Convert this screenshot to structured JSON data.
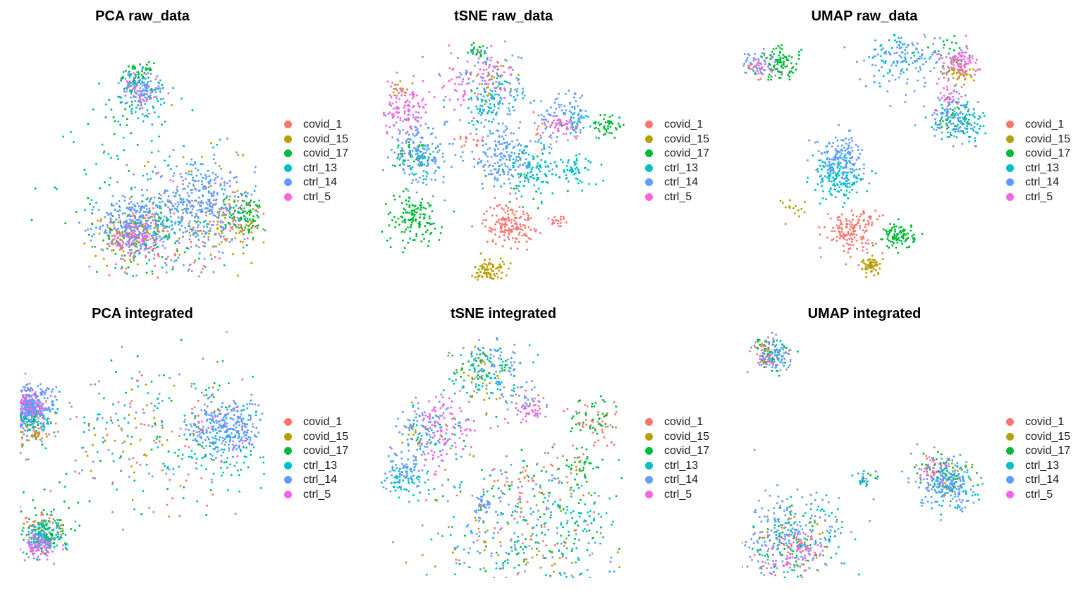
{
  "legend": {
    "entries": [
      {
        "name": "covid_1",
        "color": "#F8766D"
      },
      {
        "name": "covid_15",
        "color": "#B79F00"
      },
      {
        "name": "covid_17",
        "color": "#00BA38"
      },
      {
        "name": "ctrl_13",
        "color": "#00BFC4"
      },
      {
        "name": "ctrl_14",
        "color": "#619CFF"
      },
      {
        "name": "ctrl_5",
        "color": "#F564E3"
      }
    ]
  },
  "chart_data": [
    {
      "type": "scatter",
      "title": "PCA raw_data",
      "xlabel": "",
      "ylabel": "",
      "axes": "none",
      "grid": false,
      "legend_position": "right",
      "xlim": [
        0,
        100
      ],
      "ylim": [
        0,
        100
      ],
      "series": [
        {
          "name": "covid_1",
          "values": [
            [
              66,
              15,
              16,
              70
            ],
            [
              88,
              26,
              6,
              40
            ],
            [
              50,
              22,
              8,
              40
            ],
            [
              44,
              20,
              5,
              50
            ]
          ]
        },
        {
          "name": "covid_15",
          "values": [
            [
              82,
              22,
              7,
              70
            ],
            [
              50,
              18,
              5,
              40
            ],
            [
              42,
              16,
              6,
              40
            ],
            [
              64,
              28,
              20,
              45
            ]
          ]
        },
        {
          "name": "covid_17",
          "values": [
            [
              48,
              83,
              3,
              60
            ],
            [
              92,
              26,
              5,
              80
            ],
            [
              50,
              18,
              9,
              60
            ],
            [
              46,
              70,
              8,
              30
            ],
            [
              30,
              32,
              10,
              20
            ]
          ]
        },
        {
          "name": "ctrl_13",
          "values": [
            [
              48,
              20,
              9,
              70
            ],
            [
              68,
              28,
              14,
              80
            ],
            [
              50,
              74,
              7,
              60
            ],
            [
              40,
              48,
              12,
              25
            ]
          ]
        },
        {
          "name": "ctrl_14",
          "values": [
            [
              46,
              22,
              7,
              200
            ],
            [
              70,
              29,
              13,
              250
            ],
            [
              49,
              78,
              4,
              110
            ],
            [
              74,
              33,
              8,
              120
            ]
          ]
        },
        {
          "name": "ctrl_5",
          "values": [
            [
              47,
              16,
              5,
              70
            ],
            [
              50,
              76,
              4,
              30
            ],
            [
              66,
              30,
              10,
              20
            ]
          ]
        }
      ]
    },
    {
      "type": "scatter",
      "title": "tSNE raw_data",
      "xlabel": "",
      "ylabel": "",
      "axes": "none",
      "grid": false,
      "legend_position": "right",
      "xlim": [
        0,
        100
      ],
      "ylim": [
        0,
        100
      ],
      "series": [
        {
          "name": "covid_1",
          "values": [
            [
              52,
              23,
              5,
              160
            ],
            [
              72,
              24,
              2,
              20
            ],
            [
              36,
              56,
              3,
              20
            ],
            [
              70,
              62,
              4,
              20
            ]
          ]
        },
        {
          "name": "covid_15",
          "values": [
            [
              44,
              4,
              3,
              90
            ],
            [
              46,
              82,
              5,
              30
            ],
            [
              8,
              78,
              2,
              15
            ]
          ]
        },
        {
          "name": "covid_17",
          "values": [
            [
              13,
              25,
              6,
              130
            ],
            [
              40,
              93,
              2,
              25
            ],
            [
              92,
              63,
              3,
              45
            ],
            [
              55,
              42,
              8,
              25
            ],
            [
              14,
              52,
              4,
              40
            ]
          ]
        },
        {
          "name": "ctrl_13",
          "values": [
            [
              62,
              45,
              7,
              110
            ],
            [
              80,
              45,
              4,
              50
            ],
            [
              44,
              72,
              6,
              90
            ],
            [
              15,
              48,
              4,
              40
            ],
            [
              80,
              65,
              3,
              30
            ]
          ]
        },
        {
          "name": "ctrl_14",
          "values": [
            [
              50,
              50,
              8,
              170
            ],
            [
              16,
              50,
              6,
              120
            ],
            [
              44,
              78,
              9,
              90
            ],
            [
              74,
              68,
              5,
              70
            ],
            [
              12,
              63,
              4,
              30
            ]
          ]
        },
        {
          "name": "ctrl_5",
          "values": [
            [
              8,
              70,
              6,
              110
            ],
            [
              33,
              80,
              6,
              50
            ],
            [
              74,
              62,
              3,
              40
            ],
            [
              46,
              86,
              4,
              30
            ]
          ]
        }
      ]
    },
    {
      "type": "scatter",
      "title": "UMAP raw_data",
      "xlabel": "",
      "ylabel": "",
      "axes": "none",
      "grid": false,
      "legend_position": "right",
      "xlim": [
        0,
        100
      ],
      "ylim": [
        0,
        100
      ],
      "series": [
        {
          "name": "covid_1",
          "values": [
            [
              44,
              20,
              5,
              140
            ],
            [
              6,
              86,
              3,
              20
            ],
            [
              52,
              26,
              2,
              10
            ]
          ]
        },
        {
          "name": "covid_15",
          "values": [
            [
              53,
              6,
              2,
              60
            ],
            [
              88,
              84,
              3,
              50
            ],
            [
              22,
              30,
              3,
              15
            ]
          ]
        },
        {
          "name": "covid_17",
          "values": [
            [
              64,
              18,
              3,
              100
            ],
            [
              16,
              88,
              4,
              90
            ],
            [
              84,
              93,
              4,
              20
            ],
            [
              86,
              65,
              4,
              40
            ]
          ]
        },
        {
          "name": "ctrl_13",
          "values": [
            [
              38,
              42,
              5,
              120
            ],
            [
              90,
              65,
              5,
              80
            ],
            [
              64,
              90,
              6,
              50
            ],
            [
              42,
              38,
              3,
              30
            ]
          ]
        },
        {
          "name": "ctrl_14",
          "values": [
            [
              40,
              50,
              5,
              140
            ],
            [
              68,
              92,
              9,
              120
            ],
            [
              85,
              66,
              5,
              90
            ],
            [
              6,
              88,
              3,
              40
            ]
          ]
        },
        {
          "name": "ctrl_5",
          "values": [
            [
              88,
              88,
              4,
              90
            ],
            [
              84,
              75,
              3,
              30
            ],
            [
              10,
              86,
              3,
              15
            ]
          ]
        }
      ]
    },
    {
      "type": "scatter",
      "title": "PCA integrated",
      "xlabel": "",
      "ylabel": "",
      "axes": "none",
      "grid": false,
      "legend_position": "right",
      "xlim": [
        0,
        100
      ],
      "ylim": [
        0,
        100
      ],
      "series": [
        {
          "name": "covid_1",
          "values": [
            [
              4,
              60,
              5,
              40
            ],
            [
              50,
              56,
              20,
              60
            ],
            [
              10,
              22,
              4,
              30
            ]
          ]
        },
        {
          "name": "covid_15",
          "values": [
            [
              4,
              60,
              4,
              30
            ],
            [
              48,
              58,
              16,
              40
            ],
            [
              10,
              18,
              4,
              40
            ]
          ]
        },
        {
          "name": "covid_17",
          "values": [
            [
              4,
              66,
              4,
              60
            ],
            [
              66,
              58,
              20,
              50
            ],
            [
              10,
              18,
              5,
              80
            ],
            [
              12,
              30,
              7,
              20
            ]
          ]
        },
        {
          "name": "ctrl_13",
          "values": [
            [
              4,
              66,
              4,
              100
            ],
            [
              80,
              58,
              12,
              120
            ],
            [
              10,
              18,
              4,
              90
            ],
            [
              40,
              58,
              18,
              40
            ]
          ]
        },
        {
          "name": "ctrl_14",
          "values": [
            [
              4,
              70,
              5,
              260
            ],
            [
              84,
              60,
              7,
              240
            ],
            [
              8,
              15,
              3,
              60
            ],
            [
              44,
              56,
              22,
              60
            ]
          ]
        },
        {
          "name": "ctrl_5",
          "values": [
            [
              4,
              70,
              4,
              80
            ],
            [
              8,
              12,
              3,
              60
            ],
            [
              82,
              60,
              10,
              30
            ]
          ]
        }
      ]
    },
    {
      "type": "scatter",
      "title": "tSNE integrated",
      "xlabel": "",
      "ylabel": "",
      "axes": "none",
      "grid": false,
      "legend_position": "right",
      "xlim": [
        0,
        100
      ],
      "ylim": [
        0,
        100
      ],
      "series": [
        {
          "name": "covid_1",
          "values": [
            [
              58,
              22,
              18,
              80
            ],
            [
              60,
              70,
              5,
              20
            ],
            [
              72,
              46,
              5,
              20
            ],
            [
              56,
              40,
              4,
              15
            ],
            [
              88,
              62,
              6,
              40
            ]
          ]
        },
        {
          "name": "covid_15",
          "values": [
            [
              58,
              20,
              18,
              70
            ],
            [
              40,
              80,
              6,
              30
            ],
            [
              20,
              55,
              6,
              25
            ]
          ]
        },
        {
          "name": "covid_17",
          "values": [
            [
              62,
              20,
              18,
              90
            ],
            [
              42,
              86,
              6,
              50
            ],
            [
              86,
              66,
              5,
              40
            ],
            [
              80,
              45,
              4,
              30
            ]
          ]
        },
        {
          "name": "ctrl_13",
          "values": [
            [
              60,
              18,
              18,
              110
            ],
            [
              42,
              84,
              7,
              60
            ],
            [
              10,
              40,
              5,
              60
            ],
            [
              84,
              26,
              5,
              40
            ],
            [
              20,
              60,
              6,
              50
            ]
          ]
        },
        {
          "name": "ctrl_14",
          "values": [
            [
              56,
              22,
              18,
              110
            ],
            [
              10,
              44,
              5,
              70
            ],
            [
              46,
              88,
              7,
              60
            ],
            [
              42,
              30,
              3,
              30
            ],
            [
              18,
              62,
              6,
              60
            ],
            [
              60,
              72,
              5,
              30
            ]
          ]
        },
        {
          "name": "ctrl_5",
          "values": [
            [
              26,
              62,
              7,
              90
            ],
            [
              60,
              68,
              3,
              30
            ],
            [
              24,
              48,
              3,
              15
            ]
          ]
        }
      ]
    },
    {
      "type": "scatter",
      "title": "UMAP integrated",
      "xlabel": "",
      "ylabel": "",
      "axes": "none",
      "grid": false,
      "legend_position": "right",
      "xlim": [
        0,
        100
      ],
      "ylim": [
        0,
        100
      ],
      "series": [
        {
          "name": "covid_1",
          "values": [
            [
              20,
              12,
              10,
              40
            ],
            [
              76,
              45,
              3,
              20
            ],
            [
              10,
              92,
              3,
              20
            ]
          ]
        },
        {
          "name": "covid_15",
          "values": [
            [
              22,
              14,
              8,
              30
            ],
            [
              84,
              40,
              5,
              20
            ],
            [
              12,
              90,
              3,
              15
            ]
          ]
        },
        {
          "name": "covid_17",
          "values": [
            [
              18,
              14,
              10,
              60
            ],
            [
              82,
              42,
              6,
              50
            ],
            [
              12,
              92,
              4,
              40
            ],
            [
              52,
              40,
              2,
              10
            ]
          ]
        },
        {
          "name": "ctrl_13",
          "values": [
            [
              22,
              16,
              10,
              80
            ],
            [
              84,
              38,
              6,
              70
            ],
            [
              12,
              90,
              3,
              30
            ],
            [
              50,
              40,
              2,
              10
            ]
          ]
        },
        {
          "name": "ctrl_14",
          "values": [
            [
              18,
              16,
              11,
              180
            ],
            [
              84,
              38,
              6,
              170
            ],
            [
              14,
              90,
              4,
              60
            ],
            [
              52,
              40,
              2,
              10
            ]
          ]
        },
        {
          "name": "ctrl_5",
          "values": [
            [
              22,
              10,
              5,
              70
            ],
            [
              78,
              44,
              3,
              20
            ],
            [
              10,
              88,
              2,
              20
            ]
          ]
        }
      ]
    }
  ]
}
